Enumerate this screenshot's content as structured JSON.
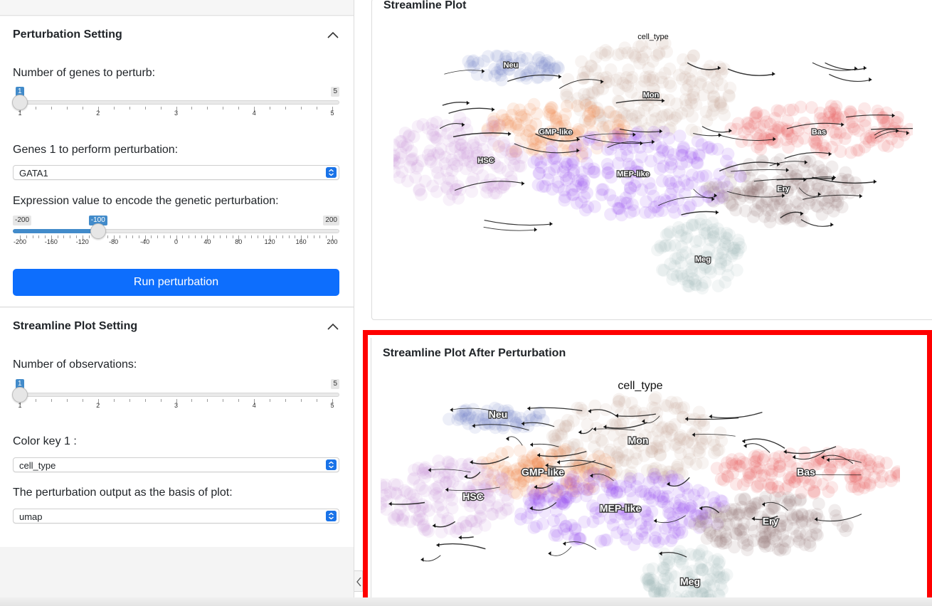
{
  "sidebar": {
    "perturbation_panel": {
      "title": "Perturbation Setting",
      "num_genes_label": "Number of genes to perturb:",
      "num_genes_slider": {
        "min": "1",
        "max": "5",
        "value": "1",
        "fraction": 0.0,
        "ticks": [
          "1",
          "2",
          "3",
          "4",
          "5"
        ]
      },
      "genes_label": "Genes 1 to perform perturbation:",
      "genes_value": "GATA1",
      "expression_label": "Expression value to encode the genetic perturbation:",
      "expression_slider": {
        "min": "-200",
        "max": "200",
        "value": "-100",
        "fraction": 0.25,
        "ticks": [
          "-200",
          "-160",
          "-120",
          "-80",
          "-40",
          "0",
          "40",
          "80",
          "120",
          "160",
          "200"
        ]
      },
      "run_button": "Run perturbation"
    },
    "streamline_panel": {
      "title": "Streamline Plot Setting",
      "num_obs_label": "Number of observations:",
      "num_obs_slider": {
        "min": "1",
        "max": "5",
        "value": "1",
        "fraction": 0.0,
        "ticks": [
          "1",
          "2",
          "3",
          "4",
          "5"
        ]
      },
      "color_key_label": "Color key 1 :",
      "color_key_value": "cell_type",
      "basis_label": "The perturbation output as the basis of plot:",
      "basis_value": "umap"
    }
  },
  "main": {
    "plot1": {
      "title": "Streamline Plot",
      "plot_title": "cell_type"
    },
    "plot2": {
      "title": "Streamline Plot After Perturbation",
      "plot_title": "cell_type"
    }
  },
  "cell_types": [
    {
      "name": "Neu",
      "color": "#6a7fc9"
    },
    {
      "name": "Mon",
      "color": "#c8a898"
    },
    {
      "name": "GMP-like",
      "color": "#f07a3c"
    },
    {
      "name": "Bas",
      "color": "#e84a4a"
    },
    {
      "name": "HSC",
      "color": "#c98ad3"
    },
    {
      "name": "MEP-like",
      "color": "#8a3cf0"
    },
    {
      "name": "Ery",
      "color": "#8d6e6e"
    },
    {
      "name": "Meg",
      "color": "#9fb1b1"
    }
  ],
  "colors": {
    "accent": "#428bca",
    "button": "#0d6efd",
    "highlight": "#ff0000"
  }
}
